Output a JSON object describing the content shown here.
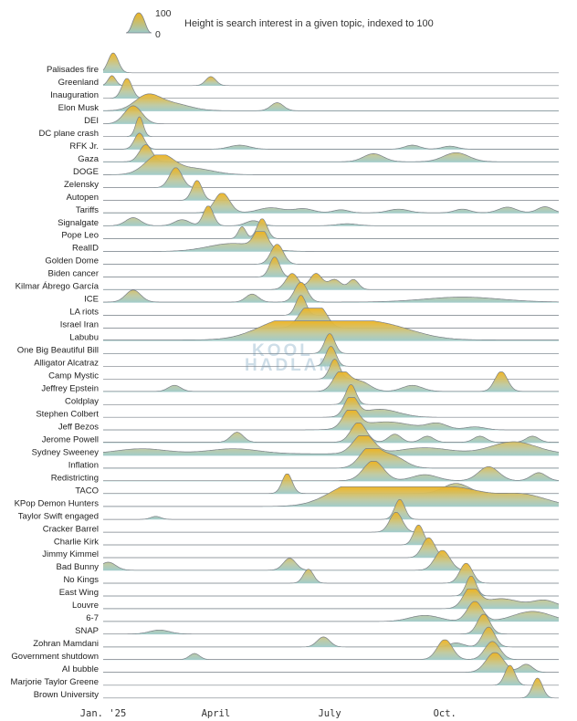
{
  "legend": {
    "max_label": "100",
    "min_label": "0",
    "description": "Height is search interest in a given topic, indexed to 100"
  },
  "watermark": {
    "line1": "KOOL",
    "line2": "HADLAM"
  },
  "colors": {
    "peak": "#f0b31c",
    "base": "#9cc9c9",
    "line": "#7a8088"
  },
  "chart_data": {
    "type": "area",
    "x_axis": {
      "start": "2025-01-01",
      "end": "2025-12-31",
      "ticks": [
        {
          "date": "2025-01-01",
          "label": "Jan. '25"
        },
        {
          "date": "2025-04-01",
          "label": "April"
        },
        {
          "date": "2025-07-01",
          "label": "July"
        },
        {
          "date": "2025-10-01",
          "label": "Oct."
        }
      ]
    },
    "y_range": [
      0,
      100
    ],
    "series": [
      {
        "name": "Palisades fire",
        "peaks": [
          [
            "2025-01-09",
            100,
            4
          ]
        ],
        "base": 1
      },
      {
        "name": "Greenland",
        "peaks": [
          [
            "2025-01-08",
            50,
            3
          ],
          [
            "2025-03-28",
            45,
            4
          ]
        ],
        "base": 1
      },
      {
        "name": "Inauguration",
        "peaks": [
          [
            "2025-01-20",
            100,
            4
          ]
        ],
        "base": 1
      },
      {
        "name": "Elon Musk",
        "peaks": [
          [
            "2025-02-05",
            70,
            10
          ],
          [
            "2025-02-25",
            35,
            14
          ],
          [
            "2025-05-20",
            40,
            5
          ]
        ],
        "base": 3
      },
      {
        "name": "DEI",
        "peaks": [
          [
            "2025-01-25",
            90,
            7
          ]
        ],
        "base": 1
      },
      {
        "name": "DC plane crash",
        "peaks": [
          [
            "2025-01-30",
            100,
            3
          ]
        ],
        "base": 1
      },
      {
        "name": "RFK Jr.",
        "peaks": [
          [
            "2025-01-30",
            80,
            4
          ],
          [
            "2025-04-20",
            20,
            8
          ],
          [
            "2025-09-05",
            20,
            6
          ],
          [
            "2025-10-05",
            15,
            6
          ]
        ],
        "base": 2
      },
      {
        "name": "Gaza",
        "peaks": [
          [
            "2025-02-04",
            85,
            5
          ],
          [
            "2025-08-05",
            40,
            8
          ],
          [
            "2025-10-10",
            45,
            10
          ]
        ],
        "base": 3
      },
      {
        "name": "DOGE",
        "peaks": [
          [
            "2025-02-15",
            100,
            11
          ],
          [
            "2025-03-15",
            30,
            15
          ]
        ],
        "base": 2
      },
      {
        "name": "Zelensky",
        "peaks": [
          [
            "2025-02-28",
            100,
            5
          ]
        ],
        "base": 1
      },
      {
        "name": "Autopen",
        "peaks": [
          [
            "2025-03-17",
            100,
            4
          ]
        ],
        "base": 1
      },
      {
        "name": "Tariffs",
        "peaks": [
          [
            "2025-04-06",
            100,
            6
          ],
          [
            "2025-05-15",
            25,
            10
          ],
          [
            "2025-06-10",
            20,
            8
          ],
          [
            "2025-07-10",
            15,
            6
          ],
          [
            "2025-08-25",
            18,
            8
          ],
          [
            "2025-10-15",
            18,
            6
          ],
          [
            "2025-11-20",
            28,
            7
          ],
          [
            "2025-12-20",
            30,
            6
          ]
        ],
        "base": 3
      },
      {
        "name": "Signalgate",
        "peaks": [
          [
            "2025-01-25",
            40,
            6
          ],
          [
            "2025-03-05",
            30,
            6
          ],
          [
            "2025-03-26",
            100,
            4
          ],
          [
            "2025-05-01",
            25,
            6
          ],
          [
            "2025-07-15",
            10,
            8
          ]
        ],
        "base": 2
      },
      {
        "name": "Pope Leo",
        "peaks": [
          [
            "2025-04-22",
            60,
            3
          ],
          [
            "2025-05-08",
            100,
            4
          ]
        ],
        "base": 1
      },
      {
        "name": "RealID",
        "peaks": [
          [
            "2025-05-07",
            100,
            5
          ],
          [
            "2025-04-15",
            40,
            20
          ]
        ],
        "base": 1
      },
      {
        "name": "Golden Dome",
        "peaks": [
          [
            "2025-05-20",
            100,
            5
          ]
        ],
        "base": 1
      },
      {
        "name": "Biden cancer",
        "peaks": [
          [
            "2025-05-18",
            100,
            4
          ]
        ],
        "base": 1
      },
      {
        "name": "Kilmar Ábrego García",
        "peaks": [
          [
            "2025-06-01",
            80,
            5
          ],
          [
            "2025-06-20",
            80,
            5
          ],
          [
            "2025-07-05",
            50,
            5
          ],
          [
            "2025-07-20",
            50,
            4
          ]
        ],
        "base": 2
      },
      {
        "name": "ICE",
        "peaks": [
          [
            "2025-01-25",
            60,
            6
          ],
          [
            "2025-04-30",
            40,
            5
          ],
          [
            "2025-06-08",
            100,
            5
          ],
          [
            "2025-10-15",
            25,
            30
          ]
        ],
        "base": 3
      },
      {
        "name": "LA riots",
        "peaks": [
          [
            "2025-06-08",
            100,
            4
          ]
        ],
        "base": 1
      },
      {
        "name": "Israel Iran",
        "peaks": [
          [
            "2025-06-13",
            100,
            7
          ],
          [
            "2025-06-24",
            80,
            6
          ]
        ],
        "base": 1
      },
      {
        "name": "Labubu",
        "peaks": [
          [
            "2025-06-25",
            100,
            30
          ],
          [
            "2025-08-15",
            60,
            25
          ],
          [
            "2025-05-20",
            50,
            20
          ]
        ],
        "base": 5
      },
      {
        "name": "One Big Beautiful Bill",
        "peaks": [
          [
            "2025-07-01",
            100,
            4
          ]
        ],
        "base": 1
      },
      {
        "name": "Alligator Alcatraz",
        "peaks": [
          [
            "2025-07-02",
            100,
            4
          ]
        ],
        "base": 1
      },
      {
        "name": "Camp Mystic",
        "peaks": [
          [
            "2025-07-05",
            100,
            4
          ]
        ],
        "base": 1
      },
      {
        "name": "Jeffrey Epstein",
        "peaks": [
          [
            "2025-02-27",
            30,
            5
          ],
          [
            "2025-07-10",
            100,
            6
          ],
          [
            "2025-07-25",
            50,
            8
          ],
          [
            "2025-09-05",
            30,
            8
          ],
          [
            "2025-11-15",
            100,
            5
          ]
        ],
        "base": 3
      },
      {
        "name": "Coldplay",
        "peaks": [
          [
            "2025-07-18",
            100,
            4
          ]
        ],
        "base": 1
      },
      {
        "name": "Stephen Colbert",
        "peaks": [
          [
            "2025-07-18",
            100,
            5
          ],
          [
            "2025-08-10",
            40,
            15
          ]
        ],
        "base": 1
      },
      {
        "name": "Jeff Bezos",
        "peaks": [
          [
            "2025-07-18",
            100,
            6
          ],
          [
            "2025-08-15",
            40,
            20
          ],
          [
            "2025-09-25",
            30,
            8
          ],
          [
            "2025-10-25",
            15,
            8
          ]
        ],
        "base": 2
      },
      {
        "name": "Jerome Powell",
        "peaks": [
          [
            "2025-04-18",
            50,
            5
          ],
          [
            "2025-07-24",
            100,
            6
          ],
          [
            "2025-08-22",
            40,
            5
          ],
          [
            "2025-09-17",
            30,
            5
          ],
          [
            "2025-10-29",
            30,
            5
          ],
          [
            "2025-12-10",
            30,
            5
          ]
        ],
        "base": 4
      },
      {
        "name": "Sydney Sweeney",
        "peaks": [
          [
            "2025-07-28",
            100,
            8
          ],
          [
            "2025-11-25",
            60,
            18
          ],
          [
            "2025-02-01",
            25,
            20
          ],
          [
            "2025-04-15",
            25,
            20
          ],
          [
            "2025-09-15",
            30,
            20
          ]
        ],
        "base": 10
      },
      {
        "name": "Inflation",
        "peaks": [
          [
            "2025-08-02",
            100,
            8
          ],
          [
            "2025-08-20",
            60,
            10
          ]
        ],
        "base": 2
      },
      {
        "name": "Redistricting",
        "peaks": [
          [
            "2025-08-05",
            100,
            8
          ],
          [
            "2025-11-05",
            70,
            8
          ],
          [
            "2025-12-15",
            40,
            6
          ],
          [
            "2025-09-15",
            30,
            10
          ]
        ],
        "base": 3
      },
      {
        "name": "TACO",
        "peaks": [
          [
            "2025-05-28",
            100,
            4
          ],
          [
            "2025-10-10",
            50,
            10
          ]
        ],
        "base": 3
      },
      {
        "name": "KPop Demon Hunters",
        "peaks": [
          [
            "2025-07-20",
            100,
            20
          ],
          [
            "2025-09-01",
            90,
            25
          ],
          [
            "2025-10-15",
            70,
            20
          ],
          [
            "2025-12-01",
            60,
            20
          ]
        ],
        "base": 2
      },
      {
        "name": "Taylor Swift engaged",
        "peaks": [
          [
            "2025-08-26",
            100,
            4
          ],
          [
            "2025-02-12",
            15,
            4
          ]
        ],
        "base": 1
      },
      {
        "name": "Cracker Barrel",
        "peaks": [
          [
            "2025-08-23",
            100,
            5
          ]
        ],
        "base": 1
      },
      {
        "name": "Charlie Kirk",
        "peaks": [
          [
            "2025-09-10",
            100,
            4
          ]
        ],
        "base": 1
      },
      {
        "name": "Jimmy Kimmel",
        "peaks": [
          [
            "2025-09-18",
            100,
            5
          ]
        ],
        "base": 1
      },
      {
        "name": "Bad Bunny",
        "peaks": [
          [
            "2025-09-29",
            100,
            6
          ],
          [
            "2025-01-05",
            40,
            6
          ],
          [
            "2025-05-30",
            60,
            5
          ]
        ],
        "base": 2
      },
      {
        "name": "No Kings",
        "peaks": [
          [
            "2025-10-18",
            100,
            5
          ],
          [
            "2025-06-14",
            70,
            4
          ]
        ],
        "base": 1
      },
      {
        "name": "East Wing",
        "peaks": [
          [
            "2025-10-22",
            100,
            4
          ]
        ],
        "base": 1
      },
      {
        "name": "Louvre",
        "peaks": [
          [
            "2025-10-22",
            100,
            6
          ],
          [
            "2025-11-15",
            50,
            15
          ],
          [
            "2025-12-20",
            40,
            10
          ]
        ],
        "base": 1
      },
      {
        "name": "6-7",
        "peaks": [
          [
            "2025-10-25",
            100,
            6
          ],
          [
            "2025-12-10",
            50,
            15
          ],
          [
            "2025-09-15",
            30,
            12
          ]
        ],
        "base": 1
      },
      {
        "name": "SNAP",
        "peaks": [
          [
            "2025-11-01",
            100,
            5
          ],
          [
            "2025-02-15",
            20,
            8
          ]
        ],
        "base": 2
      },
      {
        "name": "Zohran Mamdani",
        "peaks": [
          [
            "2025-06-26",
            50,
            5
          ],
          [
            "2025-11-05",
            100,
            5
          ],
          [
            "2025-10-10",
            20,
            6
          ]
        ],
        "base": 1
      },
      {
        "name": "Government shutdown",
        "peaks": [
          [
            "2025-10-01",
            100,
            6
          ],
          [
            "2025-11-08",
            90,
            6
          ],
          [
            "2025-03-15",
            30,
            4
          ]
        ],
        "base": 2
      },
      {
        "name": "AI bubble",
        "peaks": [
          [
            "2025-11-10",
            100,
            7
          ],
          [
            "2025-12-05",
            40,
            5
          ]
        ],
        "base": 2
      },
      {
        "name": "Marjorie Taylor Greene",
        "peaks": [
          [
            "2025-11-22",
            100,
            4
          ]
        ],
        "base": 1
      },
      {
        "name": "Brown University",
        "peaks": [
          [
            "2025-12-14",
            100,
            4
          ]
        ],
        "base": 1
      }
    ]
  }
}
